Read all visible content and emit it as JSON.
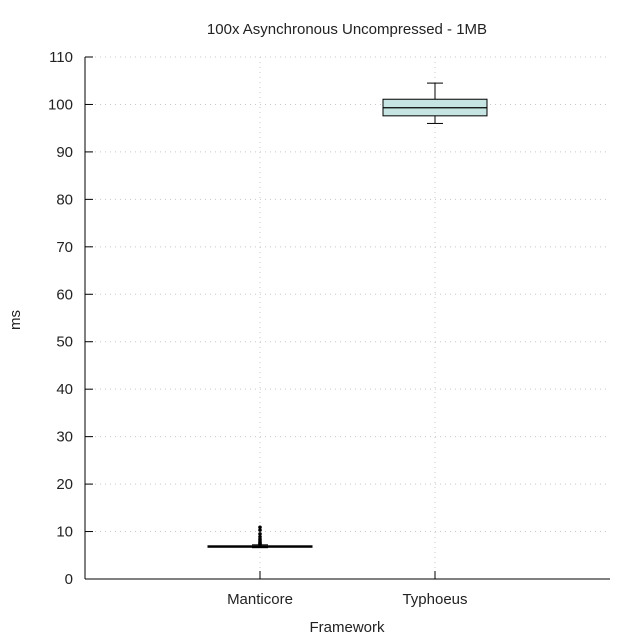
{
  "chart_data": {
    "type": "boxplot",
    "title": "100x Asynchronous Uncompressed - 1MB",
    "xlabel": "Framework",
    "ylabel": "ms",
    "ylim": [
      0,
      110
    ],
    "yticks": [
      0,
      10,
      20,
      30,
      40,
      50,
      60,
      70,
      80,
      90,
      100,
      110
    ],
    "grid": true,
    "categories": [
      "Manticore",
      "Typhoeus"
    ],
    "series": [
      {
        "category": "Manticore",
        "min": 6.6,
        "q1": 6.8,
        "median": 6.9,
        "q3": 7.0,
        "max": 7.2,
        "outliers": [
          7.3,
          7.5,
          7.7,
          8.0,
          8.4,
          8.9,
          9.5,
          10.3,
          10.9
        ],
        "color": "#000000"
      },
      {
        "category": "Typhoeus",
        "min": 96,
        "q1": 97.6,
        "median": 99.3,
        "q3": 101.1,
        "max": 104.5,
        "outliers": [],
        "color": "#c6e5e2"
      }
    ]
  }
}
